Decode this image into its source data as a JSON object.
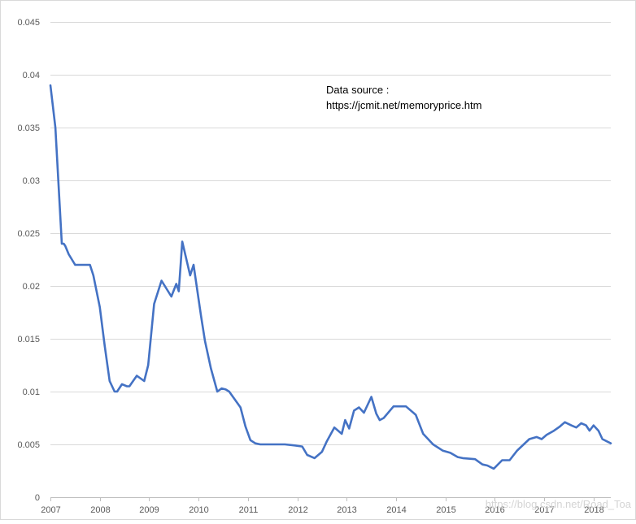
{
  "chart_data": {
    "type": "line",
    "title": "",
    "xlabel": "",
    "ylabel": "",
    "x_ticks": [
      "2007",
      "2008",
      "2009",
      "2010",
      "2011",
      "2012",
      "2013",
      "2014",
      "2015",
      "2016",
      "2017",
      "2018"
    ],
    "y_ticks": [
      "0",
      "0.005",
      "0.01",
      "0.015",
      "0.02",
      "0.025",
      "0.03",
      "0.035",
      "0.04",
      "0.045"
    ],
    "xlim": [
      2007.0,
      2018.35
    ],
    "ylim": [
      0,
      0.045
    ],
    "grid": "horizontal",
    "line_color": "#4472c4",
    "series": [
      {
        "x": [
          2007.0,
          2007.1,
          2007.23,
          2007.27,
          2007.3,
          2007.37,
          2007.5,
          2007.6,
          2007.7,
          2007.8,
          2007.87,
          2008.0,
          2008.1,
          2008.2,
          2008.3,
          2008.35,
          2008.45,
          2008.55,
          2008.6,
          2008.75,
          2008.9,
          2008.98,
          2009.1,
          2009.25,
          2009.45,
          2009.55,
          2009.6,
          2009.67,
          2009.83,
          2009.9,
          2010.05,
          2010.13,
          2010.25,
          2010.38,
          2010.47,
          2010.55,
          2010.62,
          2010.85,
          2010.95,
          2011.05,
          2011.15,
          2011.25,
          2011.55,
          2011.75,
          2011.95,
          2012.1,
          2012.2,
          2012.35,
          2012.5,
          2012.6,
          2012.75,
          2012.9,
          2012.97,
          2013.05,
          2013.15,
          2013.25,
          2013.35,
          2013.5,
          2013.6,
          2013.67,
          2013.75,
          2013.95,
          2014.05,
          2014.2,
          2014.4,
          2014.55,
          2014.75,
          2014.95,
          2015.1,
          2015.25,
          2015.35,
          2015.6,
          2015.75,
          2015.85,
          2015.98,
          2016.15,
          2016.3,
          2016.45,
          2016.7,
          2016.85,
          2016.95,
          2017.05,
          2017.2,
          2017.32,
          2017.42,
          2017.55,
          2017.65,
          2017.75,
          2017.85,
          2017.92,
          2018.0,
          2018.1,
          2018.18,
          2018.35
        ],
        "y": [
          0.039,
          0.035,
          0.024,
          0.024,
          0.0238,
          0.023,
          0.022,
          0.022,
          0.022,
          0.022,
          0.021,
          0.018,
          0.0143,
          0.011,
          0.01,
          0.01,
          0.0107,
          0.0105,
          0.0105,
          0.0115,
          0.011,
          0.0125,
          0.0183,
          0.0205,
          0.019,
          0.0202,
          0.0195,
          0.0242,
          0.021,
          0.022,
          0.0172,
          0.0148,
          0.0122,
          0.01,
          0.0103,
          0.0102,
          0.01,
          0.0085,
          0.0067,
          0.0054,
          0.0051,
          0.005,
          0.005,
          0.005,
          0.0049,
          0.0048,
          0.004,
          0.0037,
          0.0043,
          0.0053,
          0.0066,
          0.006,
          0.0073,
          0.0065,
          0.0082,
          0.0085,
          0.008,
          0.0095,
          0.0079,
          0.0073,
          0.0075,
          0.0086,
          0.0086,
          0.0086,
          0.0078,
          0.006,
          0.005,
          0.0044,
          0.0042,
          0.0038,
          0.0037,
          0.0036,
          0.0031,
          0.003,
          0.0027,
          0.0035,
          0.0035,
          0.0044,
          0.0055,
          0.0057,
          0.0055,
          0.0059,
          0.0063,
          0.0067,
          0.0071,
          0.0068,
          0.0066,
          0.007,
          0.0068,
          0.0063,
          0.0068,
          0.0063,
          0.0055,
          0.0051
        ]
      }
    ]
  },
  "annotation": {
    "line1": "Data source :",
    "line2": "https://jcmit.net/memoryprice.htm"
  },
  "watermark": "https://blog.csdn.net/Road_Toa"
}
